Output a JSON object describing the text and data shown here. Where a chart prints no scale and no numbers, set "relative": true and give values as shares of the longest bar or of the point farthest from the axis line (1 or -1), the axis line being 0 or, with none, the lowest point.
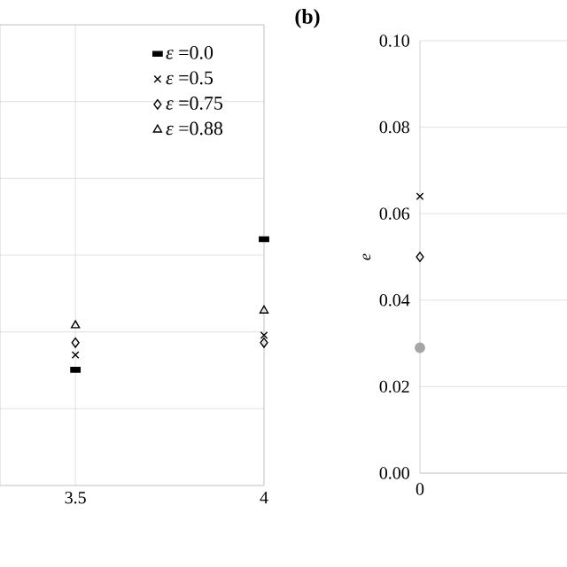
{
  "chart_data": [
    {
      "type": "scatter",
      "x": [
        3.5,
        4
      ],
      "xlim": [
        3.3,
        4
      ],
      "xticks": [
        3.5,
        4
      ],
      "relative": true,
      "grid": true,
      "legend": "top right",
      "series": [
        {
          "name": "*ε* =0.0",
          "color": "#000000",
          "marker": "square",
          "values": [
            0.47,
            1.0
          ]
        },
        {
          "name": "*ε* =0.5",
          "color": "#000000",
          "marker": "cross",
          "values": [
            0.53,
            0.61
          ]
        },
        {
          "name": "*ε* =0.75",
          "color": "#000000",
          "marker": "diamond",
          "values": [
            0.58,
            0.58
          ]
        },
        {
          "name": "*ε* =0.88",
          "color": "#000000",
          "marker": "triangle",
          "values": [
            0.65,
            0.71
          ]
        }
      ]
    },
    {
      "type": "scatter",
      "title": "(b)",
      "ylabel": "e",
      "categories": [
        "0"
      ],
      "ylim": [
        0,
        0.1
      ],
      "yticks": [
        {
          "value": 0,
          "label": "0.00"
        },
        {
          "value": 0.02,
          "label": "0.02"
        },
        {
          "value": 0.04,
          "label": "0.04"
        },
        {
          "value": 0.06,
          "label": "0.06"
        },
        {
          "value": 0.08,
          "label": "0.08"
        },
        {
          "value": 0.1,
          "label": "0.10"
        }
      ],
      "grid": "y",
      "series": [
        {
          "color": "#000000",
          "marker": "cross",
          "values": [
            0.064
          ]
        },
        {
          "color": "#000000",
          "marker": "diamond",
          "values": [
            0.05
          ]
        },
        {
          "color": "#a6a6a6",
          "marker": "circle",
          "values": [
            0.029
          ]
        }
      ]
    }
  ]
}
